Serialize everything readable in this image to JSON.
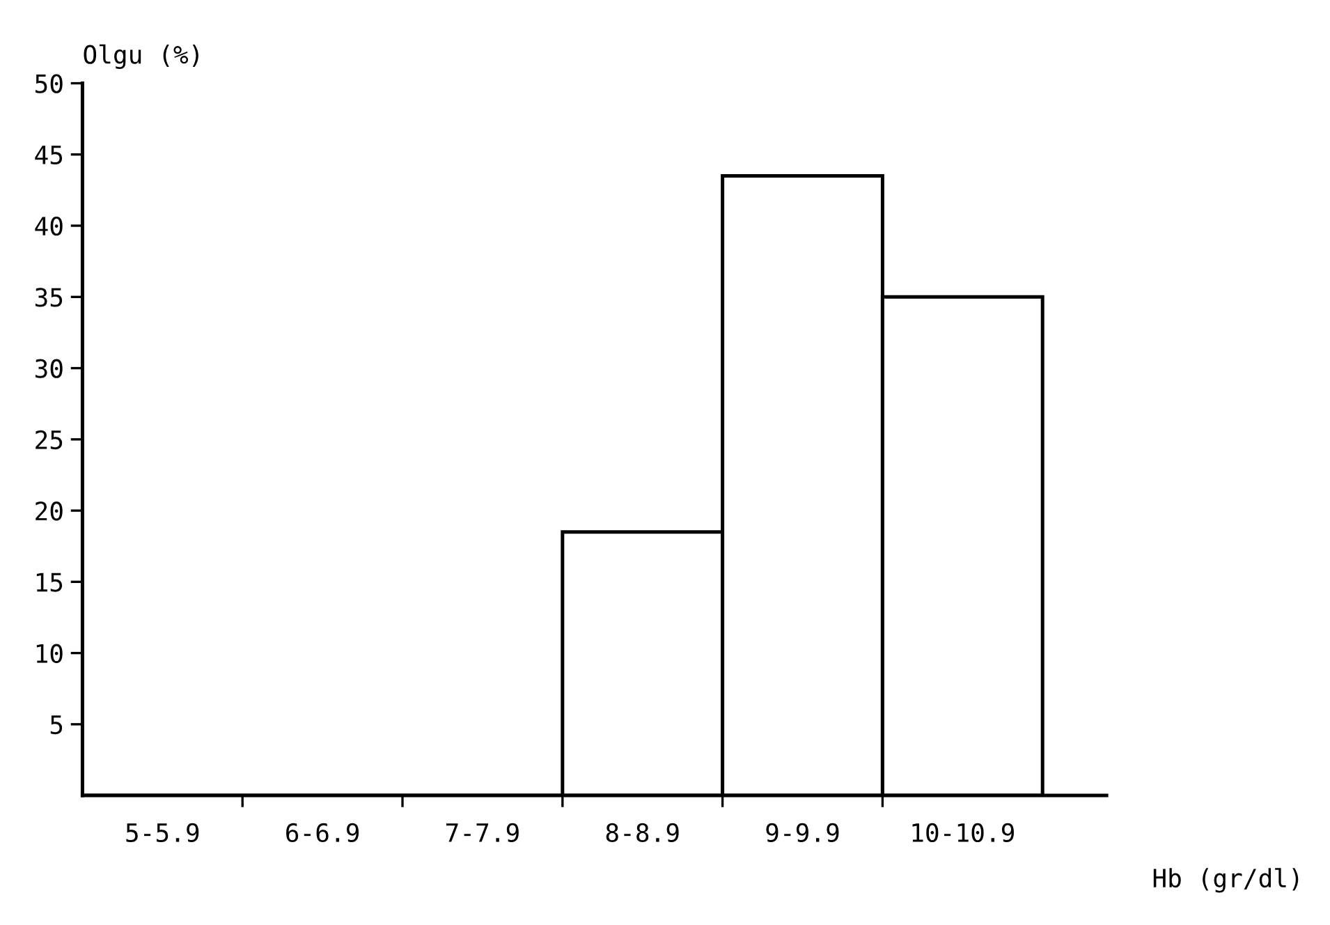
{
  "chart_data": {
    "type": "bar",
    "ylabel": "Olgu (%)",
    "xlabel": "Hb (gr/dl)",
    "categories": [
      "5-5.9",
      "6-6.9",
      "7-7.9",
      "8-8.9",
      "9-9.9",
      "10-10.9"
    ],
    "values": [
      0,
      0,
      0,
      18.5,
      43.5,
      35
    ],
    "color": "#ffffff",
    "ylim": [
      0,
      50
    ],
    "yticks": [
      5,
      10,
      15,
      20,
      25,
      30,
      35,
      40,
      45,
      50
    ],
    "grid": false
  }
}
